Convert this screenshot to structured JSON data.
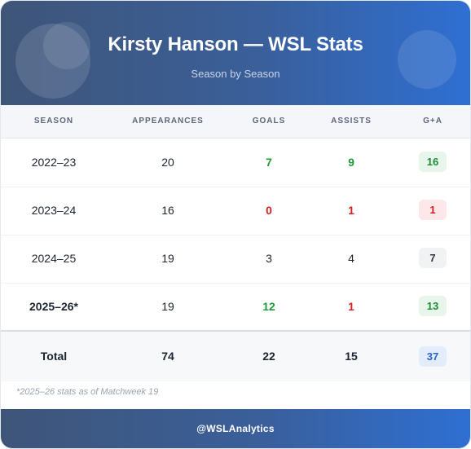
{
  "header": {
    "title": "Kirsty Hanson — WSL Stats",
    "subtitle": "Season by Season"
  },
  "table": {
    "columns": [
      "SEASON",
      "APPEARANCES",
      "GOALS",
      "ASSISTS",
      "G+A"
    ],
    "rows": [
      {
        "season": "2022–23",
        "appearances": "20",
        "goals": "7",
        "assists": "9",
        "ga": "16"
      },
      {
        "season": "2023–24",
        "appearances": "16",
        "goals": "0",
        "assists": "1",
        "ga": "1"
      },
      {
        "season": "2024–25",
        "appearances": "19",
        "goals": "3",
        "assists": "4",
        "ga": "7"
      },
      {
        "season": "2025–26*",
        "appearances": "19",
        "goals": "12",
        "assists": "1",
        "ga": "13"
      }
    ],
    "total": {
      "label": "Total",
      "appearances": "74",
      "goals": "22",
      "assists": "15",
      "ga": "37"
    }
  },
  "note": "*2025–26 stats as of Matchweek 19",
  "footer": {
    "handle": "@WSLAnalytics"
  },
  "colors": {
    "positive": "#1f9a3a",
    "negative": "#d31f1f",
    "header_gradient_start": "#3f5578",
    "header_gradient_end": "#2f6fd2",
    "total_badge": "#2b63c6"
  }
}
